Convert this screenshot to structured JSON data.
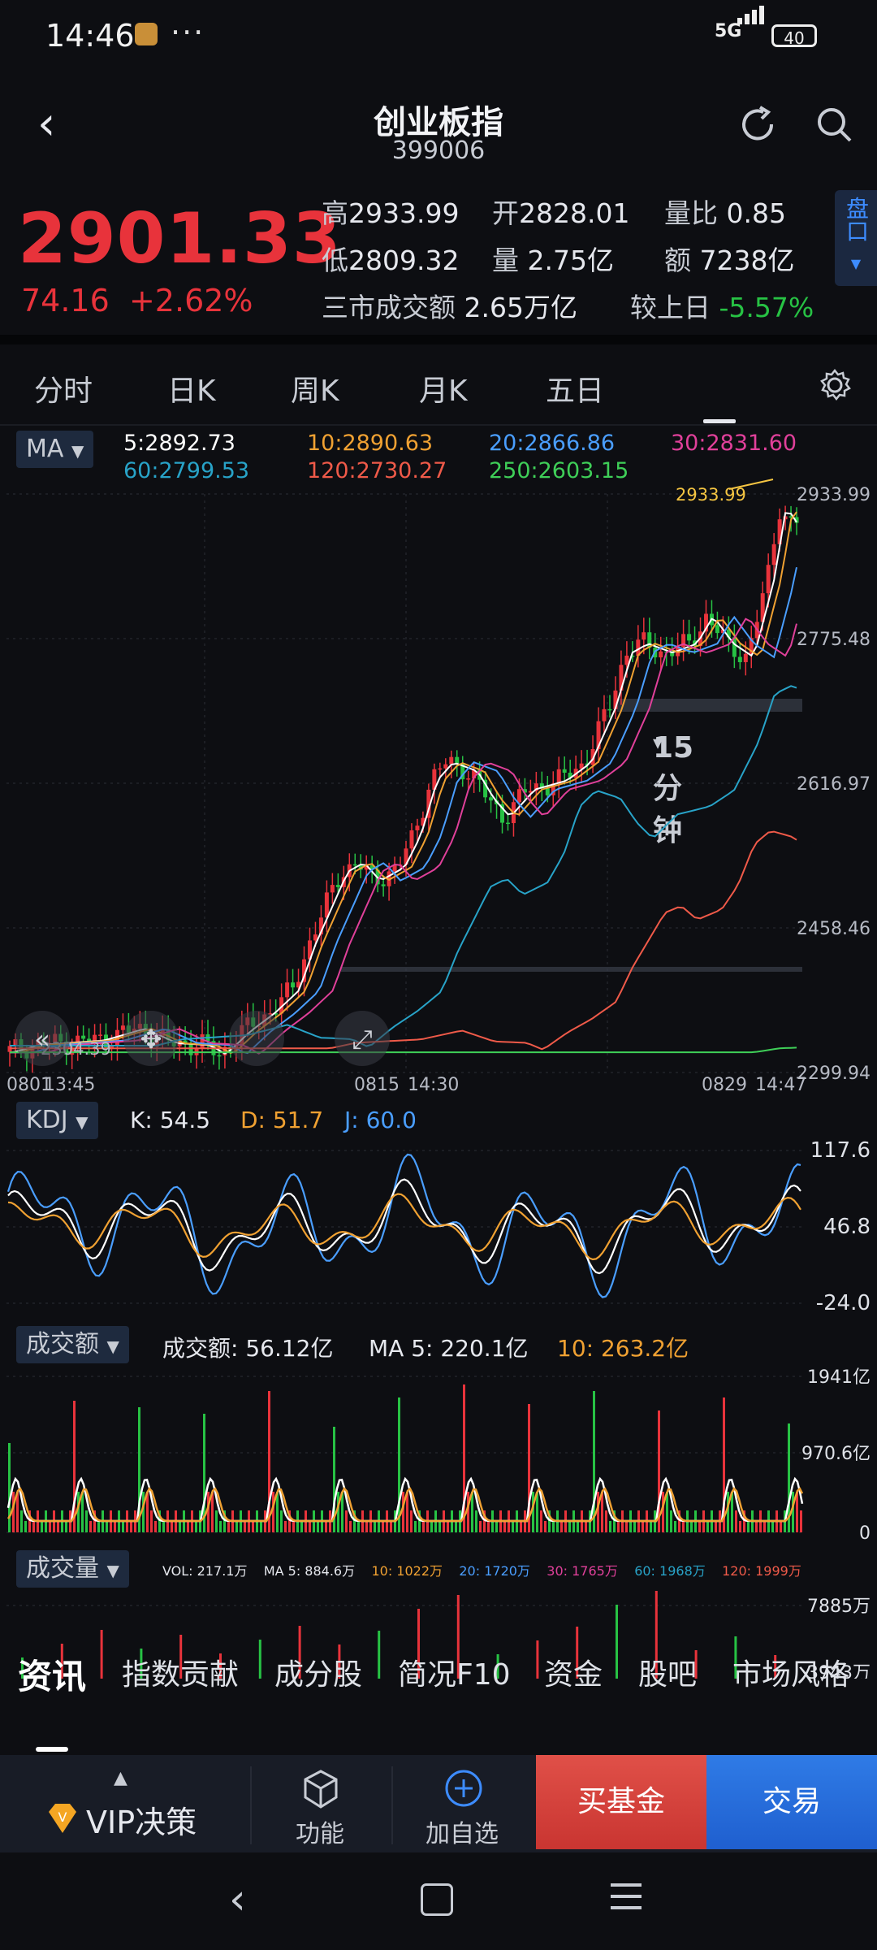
{
  "status_bar": {
    "time": "14:46",
    "dots": "···",
    "network": "5G",
    "battery": "40"
  },
  "header": {
    "title": "创业板指",
    "code": "399006"
  },
  "quote": {
    "price": "2901.33",
    "change": "74.16",
    "change_pct": "+2.62%",
    "high_label": "高",
    "high": "2933.99",
    "open_label": "开",
    "open": "2828.01",
    "vol_ratio_label": "量比",
    "vol_ratio": "0.85",
    "low_label": "低",
    "low": "2809.32",
    "volume_label": "量",
    "volume": "2.75亿",
    "amount_label": "额",
    "amount": "7238亿",
    "market_turnover_label": "三市成交额",
    "market_turnover": "2.65万亿",
    "vs_prev_label": "较上日",
    "vs_prev": "-5.57%",
    "pankou": "盘口"
  },
  "period_tabs": [
    {
      "label": "分时"
    },
    {
      "label": "日K"
    },
    {
      "label": "周K"
    },
    {
      "label": "月K"
    },
    {
      "label": "五日"
    },
    {
      "label": "15分钟"
    }
  ],
  "main_chart": {
    "indicator": "MA",
    "ma": [
      {
        "label": "5:2892.73",
        "color": "#ffffff"
      },
      {
        "label": "10:2890.63",
        "color": "#f0a132"
      },
      {
        "label": "20:2866.86",
        "color": "#4a9eff"
      },
      {
        "label": "30:2831.60",
        "color": "#e0409a"
      },
      {
        "label": "60:2799.53",
        "color": "#28a3c8"
      },
      {
        "label": "120:2730.27",
        "color": "#ef5a49"
      },
      {
        "label": "250:2603.15",
        "color": "#3fcf58"
      }
    ],
    "y_ticks": [
      "2933.99",
      "2775.48",
      "2616.97",
      "2458.46",
      "2299.94"
    ],
    "x_ticks": [
      "0801",
      "13:45",
      "0815",
      "14:30",
      "0829",
      "14:47"
    ],
    "high_marker": "2933.99",
    "low_marker": "2304.39"
  },
  "kdj": {
    "indicator": "KDJ",
    "k": "K: 54.5",
    "d": "D: 51.7",
    "j": "J: 60.0",
    "y_ticks": [
      "117.6",
      "46.8",
      "-24.0"
    ]
  },
  "turnover": {
    "indicator": "成交额",
    "value": "成交额: 56.12亿",
    "ma5": "MA 5: 220.1亿",
    "ma10": "10: 263.2亿",
    "y_ticks": [
      "1941亿",
      "970.6亿",
      "0"
    ]
  },
  "volume": {
    "indicator": "成交量",
    "vol": "VOL: 217.1万",
    "ma5": "MA 5: 884.6万",
    "ma10": "10: 1022万",
    "ma20": "20: 1720万",
    "ma30": "30: 1765万",
    "ma60": "60: 1968万",
    "ma120": "120: 1999万",
    "y_ticks": [
      "7885万",
      "3943万"
    ]
  },
  "bottom_tabs": [
    {
      "label": "资讯"
    },
    {
      "label": "指数贡献"
    },
    {
      "label": "成分股"
    },
    {
      "label": "简况F10"
    },
    {
      "label": "资金"
    },
    {
      "label": "股吧"
    },
    {
      "label": "市场风格"
    }
  ],
  "actions": {
    "vip": "VIP决策",
    "func": "功能",
    "watch": "加自选",
    "buy_fund": "买基金",
    "trade": "交易"
  },
  "colors": {
    "up": "#e8333b",
    "down": "#27c244",
    "bg": "#0d0e12",
    "accent": "#3d8cff"
  }
}
